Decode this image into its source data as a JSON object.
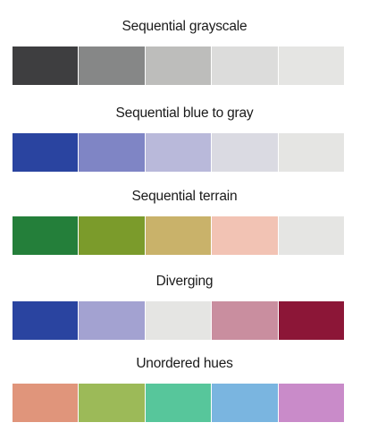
{
  "palettes": [
    {
      "title": "Sequential grayscale",
      "colors": [
        "#3e3e40",
        "#868787",
        "#bdbdbb",
        "#dcdcdb",
        "#e5e5e3"
      ]
    },
    {
      "title": "Sequential blue to gray",
      "colors": [
        "#2a44a0",
        "#7f85c5",
        "#b9b9da",
        "#dadae2",
        "#e5e5e3"
      ]
    },
    {
      "title": "Sequential terrain",
      "colors": [
        "#247f3a",
        "#7b9b2b",
        "#c9b26a",
        "#f2c3b4",
        "#e5e5e3"
      ]
    },
    {
      "title": "Diverging",
      "colors": [
        "#2a44a0",
        "#a3a2d1",
        "#e5e5e3",
        "#c98e9f",
        "#8c1637"
      ]
    },
    {
      "title": "Unordered hues",
      "colors": [
        "#e0957b",
        "#9cba58",
        "#57c69b",
        "#7ab5e0",
        "#c98bc9"
      ]
    }
  ]
}
